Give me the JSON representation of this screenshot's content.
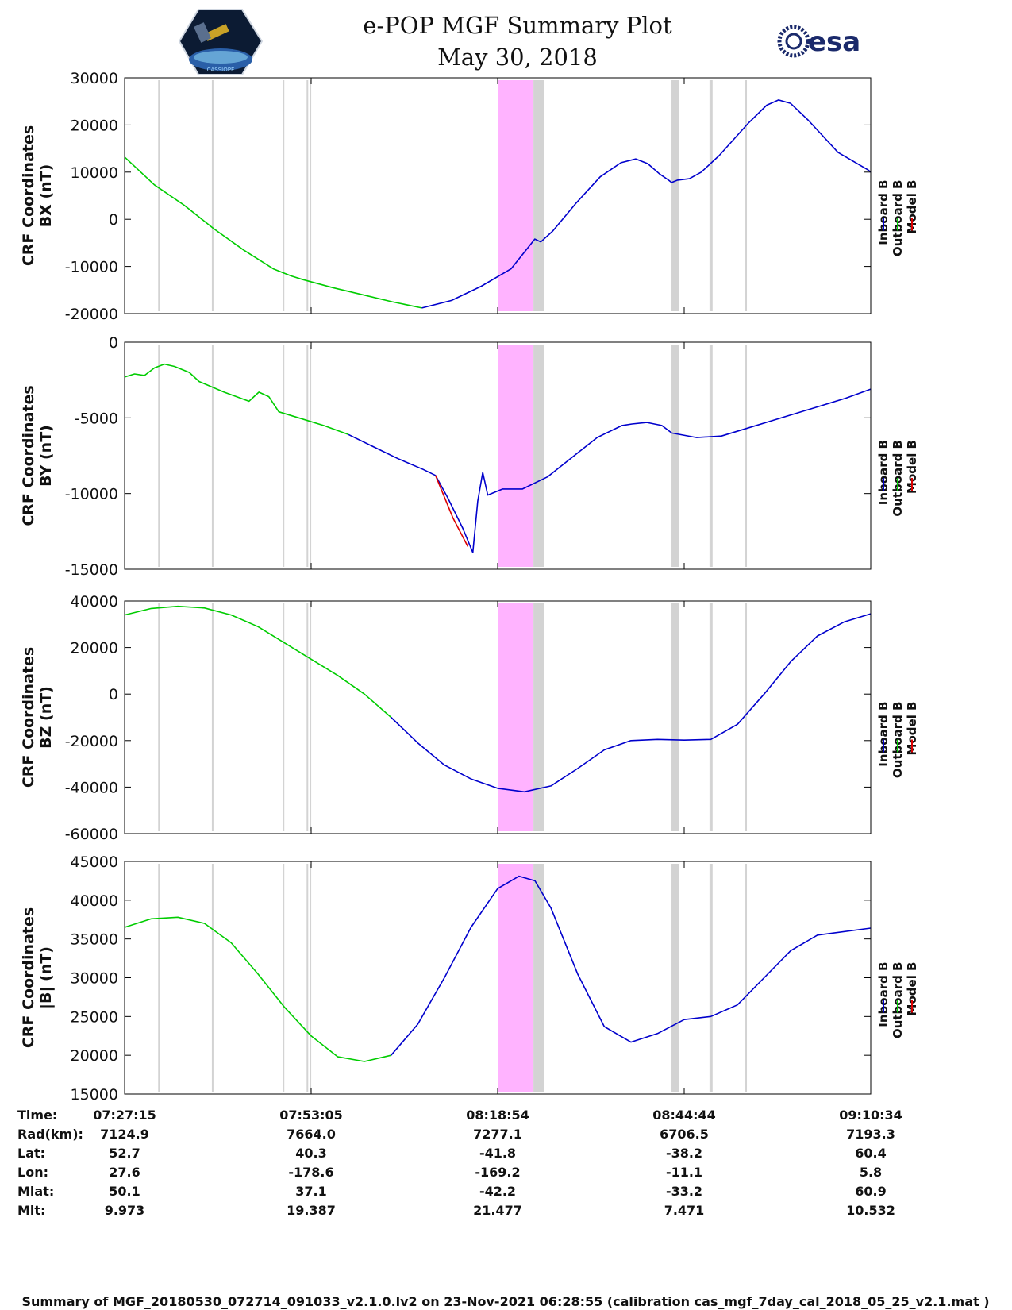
{
  "header": {
    "title_line1": "e-POP MGF Summary Plot",
    "title_line2": "May 30, 2018",
    "logo_left_text": "CASSIOPE",
    "logo_right_text": "esa"
  },
  "colors": {
    "inboard": "#0000cc",
    "outboard": "#00cc00",
    "model": "#dd0000",
    "pink_span": "#ffb3ff",
    "gray_span": "#d3d3d3"
  },
  "chart_data": [
    {
      "type": "line",
      "ylabel": [
        "CRF Coordinates",
        "BX (nT)"
      ],
      "ylim": [
        -20000,
        30000
      ],
      "yticks": [
        "30000",
        "20000",
        "10000",
        "0",
        "-10000",
        "-20000"
      ],
      "legend": [
        "Inboard B",
        "Outboard B",
        "Model B"
      ],
      "series": [
        {
          "name": "Outboard B",
          "color": "outboard",
          "points": [
            [
              0,
              13200
            ],
            [
              0.05,
              7300
            ],
            [
              0.1,
              3000
            ],
            [
              0.15,
              -2000
            ],
            [
              0.2,
              -6500
            ],
            [
              0.25,
              -10500
            ],
            [
              0.28,
              -12000
            ],
            [
              0.3,
              -12800
            ],
            [
              0.35,
              -14500
            ],
            [
              0.4,
              -16000
            ],
            [
              0.45,
              -17500
            ],
            [
              0.5,
              -18800
            ]
          ]
        },
        {
          "name": "Inboard B",
          "color": "inboard",
          "points": [
            [
              0.5,
              -18800
            ],
            [
              0.55,
              -17200
            ],
            [
              0.6,
              -14200
            ],
            [
              0.65,
              -10500
            ],
            [
              0.69,
              -4200
            ],
            [
              0.7,
              -4800
            ],
            [
              0.72,
              -2500
            ],
            [
              0.76,
              3500
            ],
            [
              0.8,
              9000
            ],
            [
              0.835,
              12000
            ],
            [
              0.86,
              12800
            ],
            [
              0.88,
              11800
            ],
            [
              0.9,
              9600
            ],
            [
              0.915,
              8300
            ],
            [
              0.92,
              7800
            ],
            [
              0.93,
              8300
            ],
            [
              0.95,
              8600
            ],
            [
              0.97,
              10000
            ],
            [
              1.0,
              13500
            ],
            [
              1.05,
              20500
            ],
            [
              1.08,
              24200
            ],
            [
              1.1,
              25300
            ],
            [
              1.12,
              24600
            ],
            [
              1.15,
              21000
            ],
            [
              1.2,
              14200
            ],
            [
              1.25,
              10500
            ],
            [
              1.255,
              10000
            ]
          ]
        }
      ]
    },
    {
      "type": "line",
      "ylabel": [
        "CRF Coordinates",
        "BY (nT)"
      ],
      "ylim": [
        -15000,
        0
      ],
      "yticks": [
        "0",
        "-5000",
        "-10000",
        "-15000"
      ],
      "legend": [
        "Inboard B",
        "Outboard B",
        "Model B"
      ],
      "series": [
        {
          "name": "Outboard B",
          "color": "outboard",
          "points": [
            [
              0,
              -2300
            ],
            [
              0.02,
              -2100
            ],
            [
              0.04,
              -2200
            ],
            [
              0.06,
              -1700
            ],
            [
              0.08,
              -1450
            ],
            [
              0.1,
              -1600
            ],
            [
              0.13,
              -2000
            ],
            [
              0.15,
              -2600
            ],
            [
              0.2,
              -3300
            ],
            [
              0.25,
              -3900
            ],
            [
              0.27,
              -3300
            ],
            [
              0.29,
              -3600
            ],
            [
              0.31,
              -4600
            ],
            [
              0.35,
              -5000
            ],
            [
              0.4,
              -5500
            ],
            [
              0.45,
              -6100
            ]
          ]
        },
        {
          "name": "Inboard B",
          "color": "inboard",
          "points": [
            [
              0.45,
              -6100
            ],
            [
              0.5,
              -6900
            ],
            [
              0.55,
              -7700
            ],
            [
              0.6,
              -8400
            ],
            [
              0.625,
              -8800
            ],
            [
              0.65,
              -10300
            ],
            [
              0.68,
              -12300
            ],
            [
              0.7,
              -13900
            ],
            [
              0.71,
              -10500
            ],
            [
              0.72,
              -8600
            ],
            [
              0.73,
              -10100
            ],
            [
              0.76,
              -9700
            ],
            [
              0.8,
              -9700
            ],
            [
              0.85,
              -8900
            ],
            [
              0.9,
              -7600
            ],
            [
              0.95,
              -6300
            ],
            [
              1.0,
              -5500
            ],
            [
              1.02,
              -5400
            ],
            [
              1.05,
              -5300
            ],
            [
              1.08,
              -5500
            ],
            [
              1.1,
              -6000
            ],
            [
              1.15,
              -6300
            ],
            [
              1.2,
              -6200
            ],
            [
              1.25,
              -5700
            ],
            [
              1.3,
              -5200
            ],
            [
              1.35,
              -4700
            ],
            [
              1.4,
              -4200
            ],
            [
              1.45,
              -3700
            ],
            [
              1.5,
              -3100
            ]
          ]
        },
        {
          "name": "Model B",
          "color": "model",
          "points": [
            [
              0.625,
              -8800
            ],
            [
              0.66,
              -11600
            ],
            [
              0.69,
              -13500
            ]
          ]
        }
      ]
    },
    {
      "type": "line",
      "ylabel": [
        "CRF Coordinates",
        "BZ (nT)"
      ],
      "ylim": [
        -60000,
        40000
      ],
      "yticks": [
        "40000",
        "20000",
        "0",
        "-20000",
        "-40000",
        "-60000"
      ],
      "legend": [
        "Inboard B",
        "Outboard B",
        "Model B"
      ],
      "series": [
        {
          "name": "Outboard B",
          "color": "outboard",
          "points": [
            [
              0,
              34000
            ],
            [
              0.05,
              36800
            ],
            [
              0.1,
              37700
            ],
            [
              0.15,
              37000
            ],
            [
              0.2,
              34000
            ],
            [
              0.25,
              29000
            ],
            [
              0.3,
              22000
            ],
            [
              0.35,
              15000
            ],
            [
              0.4,
              8000
            ],
            [
              0.45,
              0
            ],
            [
              0.5,
              -10000
            ]
          ]
        },
        {
          "name": "Inboard B",
          "color": "inboard",
          "points": [
            [
              0.5,
              -10000
            ],
            [
              0.55,
              -21000
            ],
            [
              0.6,
              -30500
            ],
            [
              0.65,
              -36500
            ],
            [
              0.7,
              -40500
            ],
            [
              0.75,
              -42000
            ],
            [
              0.8,
              -39500
            ],
            [
              0.85,
              -32000
            ],
            [
              0.9,
              -24000
            ],
            [
              0.95,
              -20000
            ],
            [
              1.0,
              -19500
            ],
            [
              1.05,
              -19800
            ],
            [
              1.1,
              -19500
            ],
            [
              1.15,
              -13000
            ],
            [
              1.2,
              0
            ],
            [
              1.25,
              14000
            ],
            [
              1.3,
              25000
            ],
            [
              1.35,
              31000
            ],
            [
              1.4,
              34500
            ]
          ]
        }
      ]
    },
    {
      "type": "line",
      "ylabel": [
        "CRF Coordinates",
        "|B| (nT)"
      ],
      "ylim": [
        15000,
        45000
      ],
      "yticks": [
        "45000",
        "40000",
        "35000",
        "30000",
        "25000",
        "20000",
        "15000"
      ],
      "legend": [
        "Inboard B",
        "Outboard B",
        "Model B"
      ],
      "series": [
        {
          "name": "Outboard B",
          "color": "outboard",
          "points": [
            [
              0,
              36500
            ],
            [
              0.05,
              37600
            ],
            [
              0.1,
              37800
            ],
            [
              0.15,
              37000
            ],
            [
              0.2,
              34500
            ],
            [
              0.25,
              30500
            ],
            [
              0.3,
              26200
            ],
            [
              0.35,
              22500
            ],
            [
              0.4,
              19800
            ],
            [
              0.45,
              19200
            ],
            [
              0.5,
              20000
            ]
          ]
        },
        {
          "name": "Inboard B",
          "color": "inboard",
          "points": [
            [
              0.5,
              20000
            ],
            [
              0.55,
              24000
            ],
            [
              0.6,
              30000
            ],
            [
              0.65,
              36500
            ],
            [
              0.7,
              41500
            ],
            [
              0.74,
              43100
            ],
            [
              0.77,
              42500
            ],
            [
              0.8,
              39000
            ],
            [
              0.85,
              30500
            ],
            [
              0.9,
              23700
            ],
            [
              0.95,
              21700
            ],
            [
              1.0,
              22800
            ],
            [
              1.05,
              24600
            ],
            [
              1.1,
              25000
            ],
            [
              1.15,
              26500
            ],
            [
              1.2,
              30000
            ],
            [
              1.25,
              33500
            ],
            [
              1.3,
              35500
            ],
            [
              1.4,
              36400
            ]
          ]
        }
      ]
    }
  ],
  "spans": {
    "pink": [
      0.5,
      0.548
    ],
    "gray_bands": [
      [
        0.548,
        0.562
      ],
      [
        0.733,
        0.743
      ]
    ],
    "gray_lines": [
      0.046,
      0.118,
      0.213,
      0.245,
      0.249,
      0.785,
      0.787,
      0.833
    ]
  },
  "ephemeris": {
    "labels": [
      "Time:",
      "Rad(km):",
      "Lat:",
      "Lon:",
      "Mlat:",
      "Mlt:"
    ],
    "columns": [
      [
        "07:27:15",
        "7124.9",
        "52.7",
        "27.6",
        "50.1",
        "9.973"
      ],
      [
        "07:53:05",
        "7664.0",
        "40.3",
        "-178.6",
        "37.1",
        "19.387"
      ],
      [
        "08:18:54",
        "7277.1",
        "-41.8",
        "-169.2",
        "-42.2",
        "21.477"
      ],
      [
        "08:44:44",
        "6706.5",
        "-38.2",
        "-11.1",
        "-33.2",
        "7.471"
      ],
      [
        "09:10:34",
        "7193.3",
        "60.4",
        "5.8",
        "60.9",
        "10.532"
      ]
    ]
  },
  "footer": {
    "text": "Summary of MGF_20180530_072714_091033_v2.1.0.lv2 on 23-Nov-2021 06:28:55 (calibration cas_mgf_7day_cal_2018_05_25_v2.1.mat )"
  }
}
